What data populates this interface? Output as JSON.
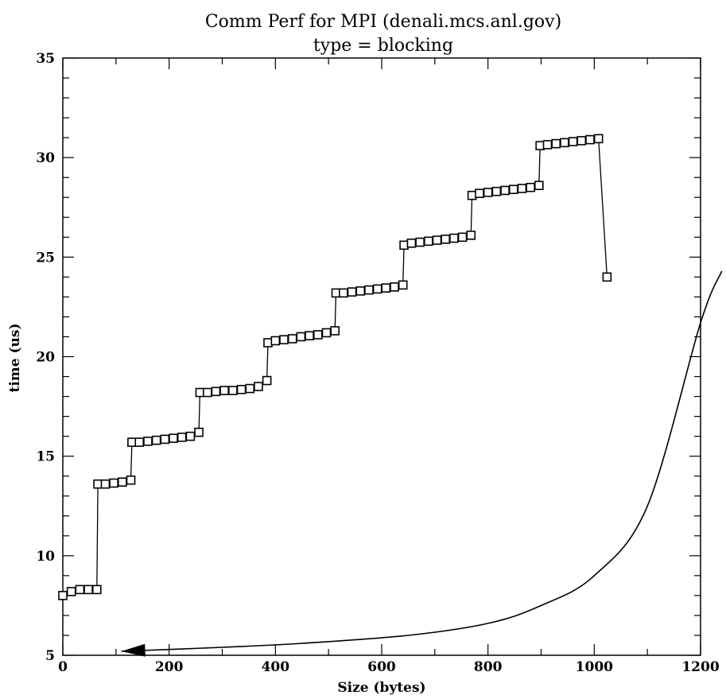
{
  "chart_data": {
    "type": "line",
    "title": "Comm Perf for MPI (denali.mcs.anl.gov)",
    "subtitle": "type = blocking",
    "xlabel": "Size (bytes)",
    "ylabel": "time (us)",
    "xlim": [
      0,
      1200
    ],
    "ylim": [
      5,
      35
    ],
    "xticks": [
      0,
      200,
      400,
      600,
      800,
      1000,
      1200
    ],
    "yticks": [
      5,
      10,
      15,
      20,
      25,
      30,
      35
    ],
    "grid": false,
    "legend": "none",
    "series": [
      {
        "marker": "open-square",
        "x": [
          0,
          16,
          32,
          48,
          64,
          66,
          80,
          96,
          112,
          128,
          130,
          144,
          160,
          176,
          192,
          208,
          224,
          240,
          256,
          258,
          272,
          288,
          304,
          320,
          336,
          352,
          368,
          384,
          386,
          400,
          416,
          432,
          448,
          464,
          480,
          496,
          512,
          514,
          528,
          544,
          560,
          576,
          592,
          608,
          624,
          640,
          642,
          656,
          672,
          688,
          704,
          720,
          736,
          752,
          768,
          770,
          784,
          800,
          816,
          832,
          848,
          864,
          880,
          896,
          898,
          912,
          928,
          944,
          960,
          976,
          992,
          1008,
          1024
        ],
        "y": [
          8.0,
          8.2,
          8.3,
          8.3,
          8.3,
          13.6,
          13.6,
          13.65,
          13.7,
          13.8,
          15.7,
          15.7,
          15.75,
          15.8,
          15.85,
          15.9,
          15.95,
          16.0,
          16.2,
          18.2,
          18.2,
          18.25,
          18.3,
          18.3,
          18.35,
          18.4,
          18.5,
          18.8,
          20.7,
          20.8,
          20.85,
          20.9,
          21.0,
          21.05,
          21.1,
          21.2,
          21.3,
          23.2,
          23.2,
          23.25,
          23.3,
          23.35,
          23.4,
          23.45,
          23.5,
          23.6,
          25.6,
          25.7,
          25.75,
          25.8,
          25.85,
          25.9,
          25.95,
          26.0,
          26.1,
          28.1,
          28.2,
          28.25,
          28.3,
          28.35,
          28.4,
          28.45,
          28.5,
          28.6,
          30.6,
          30.65,
          30.7,
          30.75,
          30.8,
          30.85,
          30.9,
          30.95,
          24.0
        ]
      }
    ],
    "annotations": [
      {
        "type": "curved-arrow",
        "text": "",
        "points": [
          [
            1240,
            24.3
          ],
          [
            1200,
            21.7
          ],
          [
            1100,
            12.5
          ],
          [
            1000,
            9.0
          ],
          [
            900,
            7.5
          ],
          [
            800,
            6.6
          ],
          [
            650,
            6.0
          ],
          [
            450,
            5.6
          ],
          [
            300,
            5.4
          ],
          [
            110,
            5.2
          ]
        ],
        "arrowhead": "end"
      }
    ]
  }
}
